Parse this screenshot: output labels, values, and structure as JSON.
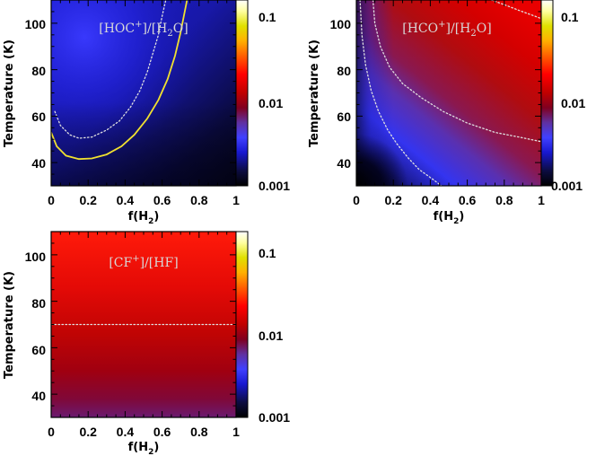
{
  "chart_data": [
    {
      "type": "heatmap",
      "title": "[HOC+]/[H2O]",
      "title_main": "[HOC",
      "title_sup": "+",
      "title_mid": "]/[H",
      "title_sub": "2",
      "title_end": "O]",
      "xlabel": "f(H2)",
      "xlabel_main": "f(H",
      "xlabel_sub": "2",
      "xlabel_end": ")",
      "ylabel": "Temperature (K)",
      "xlim": [
        0,
        1
      ],
      "ylim": [
        30,
        110
      ],
      "x_ticks": [
        "0",
        "0.2",
        "0.4",
        "0.6",
        "0.8",
        "1"
      ],
      "y_ticks": [
        "40",
        "60",
        "80",
        "100"
      ],
      "colorbar": {
        "scale": "log",
        "range": [
          0.001,
          0.14
        ],
        "tick_labels": [
          "0.1",
          "0.01",
          "0.001"
        ],
        "colors": [
          "#000000",
          "#0c0c40",
          "#1818d0",
          "#4040ff",
          "#6030a0",
          "#800020",
          "#c00000",
          "#ff0000",
          "#ff6000",
          "#ffb000",
          "#e0e000",
          "#ffffa0",
          "#ffffff"
        ]
      },
      "contours": [
        {
          "style": "solid",
          "color": "#f0e030",
          "points": [
            [
              0.0,
              53
            ],
            [
              0.03,
              47
            ],
            [
              0.08,
              43
            ],
            [
              0.15,
              41.5
            ],
            [
              0.22,
              41.8
            ],
            [
              0.3,
              43.5
            ],
            [
              0.38,
              47
            ],
            [
              0.45,
              52
            ],
            [
              0.52,
              59
            ],
            [
              0.58,
              67
            ],
            [
              0.63,
              76
            ],
            [
              0.67,
              86
            ],
            [
              0.7,
              96
            ],
            [
              0.72,
              104
            ],
            [
              0.735,
              110
            ]
          ]
        },
        {
          "style": "dotted",
          "color": "#e0e0e0",
          "points": [
            [
              0.02,
              62
            ],
            [
              0.05,
              56
            ],
            [
              0.1,
              52
            ],
            [
              0.15,
              50.5
            ],
            [
              0.22,
              51
            ],
            [
              0.3,
              54
            ],
            [
              0.37,
              58
            ],
            [
              0.43,
              64
            ],
            [
              0.48,
              71
            ],
            [
              0.52,
              79
            ],
            [
              0.55,
              87
            ],
            [
              0.58,
              95
            ],
            [
              0.6,
              103
            ],
            [
              0.62,
              110
            ]
          ]
        }
      ]
    },
    {
      "type": "heatmap",
      "title": "[HCO+]/[H2O]",
      "title_main": "[HCO",
      "title_sup": "+",
      "title_mid": "]/[H",
      "title_sub": "2",
      "title_end": "O]",
      "xlabel": "f(H2)",
      "xlabel_main": "f(H",
      "xlabel_sub": "2",
      "xlabel_end": ")",
      "ylabel": "Temperature (K)",
      "xlim": [
        0,
        1
      ],
      "ylim": [
        30,
        110
      ],
      "x_ticks": [
        "0",
        "0.2",
        "0.4",
        "0.6",
        "0.8",
        "1"
      ],
      "y_ticks": [
        "40",
        "60",
        "80",
        "100"
      ],
      "colorbar": {
        "scale": "log",
        "range": [
          0.001,
          0.14
        ],
        "tick_labels": [
          "0.1",
          "0.01",
          "0.001"
        ],
        "colors": [
          "#000000",
          "#0c0c40",
          "#1818d0",
          "#4040ff",
          "#6030a0",
          "#800020",
          "#c00000",
          "#ff0000",
          "#ff6000",
          "#ffb000",
          "#e0e000",
          "#ffffa0",
          "#ffffff"
        ]
      },
      "contours": [
        {
          "style": "dotted",
          "color": "#e0e0e0",
          "points": [
            [
              0.02,
              110
            ],
            [
              0.03,
              95
            ],
            [
              0.05,
              82
            ],
            [
              0.08,
              71
            ],
            [
              0.12,
              62
            ],
            [
              0.17,
              54
            ],
            [
              0.22,
              48
            ],
            [
              0.28,
              42
            ],
            [
              0.34,
              37
            ],
            [
              0.41,
              33
            ],
            [
              0.46,
              30
            ]
          ]
        },
        {
          "style": "dotted",
          "color": "#e0e0e0",
          "points": [
            [
              0.09,
              110
            ],
            [
              0.1,
              100
            ],
            [
              0.13,
              90
            ],
            [
              0.18,
              81
            ],
            [
              0.25,
              74
            ],
            [
              0.35,
              68
            ],
            [
              0.47,
              62
            ],
            [
              0.6,
              57
            ],
            [
              0.75,
              53
            ],
            [
              0.88,
              51
            ],
            [
              1.0,
              49
            ]
          ]
        },
        {
          "style": "dotted",
          "color": "#e0e0e0",
          "points": [
            [
              0.73,
              110
            ],
            [
              0.8,
              108
            ],
            [
              0.88,
              105.5
            ],
            [
              0.95,
              103.5
            ],
            [
              1.0,
              102
            ]
          ]
        }
      ]
    },
    {
      "type": "heatmap",
      "title": "[CF+]/[HF]",
      "title_main": "[CF",
      "title_sup": "+",
      "title_mid": "]/[HF]",
      "title_sub": "",
      "title_end": "",
      "xlabel": "f(H2)",
      "xlabel_main": "f(H",
      "xlabel_sub": "2",
      "xlabel_end": ")",
      "ylabel": "Temperature (K)",
      "xlim": [
        0,
        1
      ],
      "ylim": [
        30,
        110
      ],
      "x_ticks": [
        "0",
        "0.2",
        "0.4",
        "0.6",
        "0.8",
        "1"
      ],
      "y_ticks": [
        "40",
        "60",
        "80",
        "100"
      ],
      "colorbar": {
        "scale": "log",
        "range": [
          0.001,
          0.14
        ],
        "tick_labels": [
          "0.1",
          "0.01",
          "0.001"
        ],
        "colors": [
          "#000000",
          "#0c0c40",
          "#1818d0",
          "#4040ff",
          "#6030a0",
          "#800020",
          "#c00000",
          "#ff0000",
          "#ff6000",
          "#ffb000",
          "#e0e000",
          "#ffffa0",
          "#ffffff"
        ]
      },
      "contours": [
        {
          "style": "dotted",
          "color": "#e0e0e0",
          "points": [
            [
              0.0,
              70
            ],
            [
              1.0,
              70
            ]
          ]
        }
      ]
    }
  ]
}
